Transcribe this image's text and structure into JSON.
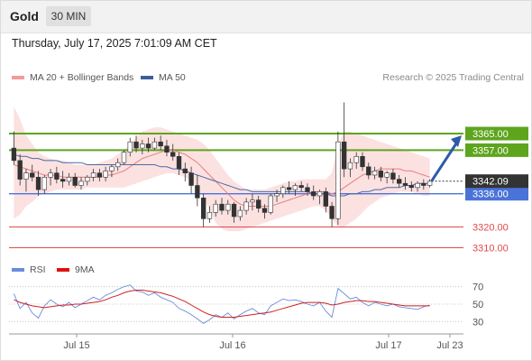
{
  "header": {
    "instrument": "Gold",
    "timeframe": "30 MIN"
  },
  "datetime": "Thursday, July 17, 2025 7:01:09 AM CET",
  "credit": "Research © 2025 Trading Central",
  "colors": {
    "up": "#5f9f3a",
    "down": "#e96a6a",
    "ma50": "#4a6aa8",
    "ma20": "#e88080",
    "band": "#fcdede",
    "resistance": "#5ea51e",
    "support_blue": "#4a73d8",
    "support_red": "#e24a4a",
    "rsi": "#6a8ddc",
    "rsi_ma": "#cc2222",
    "arrow": "#2e5ba8"
  },
  "legend": {
    "ma20": "MA 20 + Bollinger Bands",
    "ma50": "MA 50",
    "rsi": "RSI",
    "rsi_ma": "9MA"
  },
  "chart_data": [
    {
      "type": "line",
      "subtype": "candlestick",
      "x_ticks": [
        "Jul 15",
        "Jul 16",
        "Jul 17",
        "Jul 23"
      ],
      "y_range": [
        3305,
        3385
      ],
      "current_price": 3342.09,
      "levels": [
        {
          "value": 3365.0,
          "label": "3365.00",
          "kind": "resistance"
        },
        {
          "value": 3357.0,
          "label": "3357.00",
          "kind": "resistance"
        },
        {
          "value": 3336.0,
          "label": "3336.00",
          "kind": "support_blue"
        },
        {
          "value": 3320.0,
          "label": "3320.00",
          "kind": "support_red"
        },
        {
          "value": 3310.0,
          "label": "3310.00",
          "kind": "support_red"
        }
      ],
      "candles": [
        [
          3358,
          3366,
          3350,
          3352
        ],
        [
          3352,
          3355,
          3340,
          3343
        ],
        [
          3343,
          3348,
          3337,
          3346
        ],
        [
          3346,
          3350,
          3342,
          3344
        ],
        [
          3344,
          3347,
          3335,
          3338
        ],
        [
          3338,
          3345,
          3336,
          3344
        ],
        [
          3344,
          3348,
          3340,
          3346
        ],
        [
          3346,
          3349,
          3341,
          3343
        ],
        [
          3343,
          3347,
          3339,
          3342
        ],
        [
          3342,
          3346,
          3340,
          3344
        ],
        [
          3344,
          3346,
          3339,
          3340
        ],
        [
          3340,
          3344,
          3338,
          3342
        ],
        [
          3342,
          3345,
          3340,
          3344
        ],
        [
          3344,
          3348,
          3342,
          3346
        ],
        [
          3346,
          3348,
          3342,
          3344
        ],
        [
          3344,
          3349,
          3342,
          3347
        ],
        [
          3347,
          3350,
          3344,
          3349
        ],
        [
          3349,
          3353,
          3347,
          3351
        ],
        [
          3351,
          3357,
          3350,
          3356
        ],
        [
          3356,
          3363,
          3354,
          3361
        ],
        [
          3361,
          3364,
          3356,
          3358
        ],
        [
          3358,
          3362,
          3355,
          3360
        ],
        [
          3360,
          3363,
          3356,
          3358
        ],
        [
          3358,
          3363,
          3357,
          3361
        ],
        [
          3361,
          3364,
          3357,
          3359
        ],
        [
          3359,
          3362,
          3354,
          3356
        ],
        [
          3356,
          3360,
          3352,
          3354
        ],
        [
          3354,
          3356,
          3345,
          3348
        ],
        [
          3348,
          3351,
          3342,
          3346
        ],
        [
          3346,
          3349,
          3336,
          3340
        ],
        [
          3340,
          3345,
          3330,
          3334
        ],
        [
          3334,
          3336,
          3320,
          3324
        ],
        [
          3324,
          3330,
          3322,
          3327
        ],
        [
          3327,
          3333,
          3325,
          3331
        ],
        [
          3331,
          3334,
          3326,
          3328
        ],
        [
          3328,
          3333,
          3326,
          3331
        ],
        [
          3331,
          3332,
          3322,
          3325
        ],
        [
          3325,
          3330,
          3323,
          3328
        ],
        [
          3328,
          3334,
          3326,
          3332
        ],
        [
          3332,
          3336,
          3328,
          3333
        ],
        [
          3333,
          3335,
          3327,
          3329
        ],
        [
          3329,
          3331,
          3324,
          3327
        ],
        [
          3327,
          3336,
          3326,
          3335
        ],
        [
          3335,
          3338,
          3332,
          3336
        ],
        [
          3336,
          3340,
          3334,
          3339
        ],
        [
          3339,
          3342,
          3336,
          3338
        ],
        [
          3338,
          3341,
          3335,
          3340
        ],
        [
          3340,
          3342,
          3337,
          3339
        ],
        [
          3339,
          3341,
          3335,
          3337
        ],
        [
          3337,
          3340,
          3333,
          3335
        ],
        [
          3335,
          3338,
          3331,
          3337
        ],
        [
          3337,
          3339,
          3327,
          3330
        ],
        [
          3330,
          3332,
          3320,
          3324
        ],
        [
          3324,
          3366,
          3321,
          3361
        ],
        [
          3361,
          3380,
          3344,
          3348
        ],
        [
          3348,
          3353,
          3344,
          3351
        ],
        [
          3351,
          3356,
          3348,
          3354
        ],
        [
          3354,
          3356,
          3347,
          3349
        ],
        [
          3349,
          3351,
          3343,
          3345
        ],
        [
          3345,
          3349,
          3343,
          3347
        ],
        [
          3347,
          3349,
          3342,
          3344
        ],
        [
          3344,
          3347,
          3341,
          3346
        ],
        [
          3346,
          3348,
          3341,
          3343
        ],
        [
          3343,
          3345,
          3339,
          3341
        ],
        [
          3341,
          3344,
          3338,
          3340
        ],
        [
          3340,
          3342,
          3337,
          3339
        ],
        [
          3339,
          3342,
          3337,
          3341
        ],
        [
          3341,
          3343,
          3338,
          3340
        ],
        [
          3340,
          3343,
          3339,
          3342
        ]
      ],
      "ma20": [
        3350,
        3349,
        3348,
        3347,
        3346,
        3345,
        3345,
        3345,
        3344,
        3344,
        3344,
        3344,
        3344,
        3344,
        3344,
        3345,
        3345,
        3346,
        3347,
        3349,
        3351,
        3353,
        3354,
        3355,
        3356,
        3357,
        3357,
        3356,
        3355,
        3353,
        3351,
        3348,
        3345,
        3342,
        3339,
        3336,
        3333,
        3331,
        3330,
        3330,
        3330,
        3330,
        3330,
        3331,
        3332,
        3333,
        3334,
        3335,
        3336,
        3337,
        3337,
        3337,
        3336,
        3337,
        3339,
        3341,
        3343,
        3345,
        3346,
        3347,
        3348,
        3348,
        3348,
        3348,
        3347,
        3347,
        3346,
        3345,
        3344
      ],
      "bb_upper": [
        3378,
        3372,
        3364,
        3360,
        3356,
        3354,
        3353,
        3352,
        3352,
        3351,
        3350,
        3350,
        3350,
        3350,
        3351,
        3352,
        3353,
        3355,
        3357,
        3360,
        3363,
        3366,
        3367,
        3368,
        3368,
        3367,
        3366,
        3365,
        3364,
        3363,
        3362,
        3360,
        3357,
        3353,
        3349,
        3345,
        3342,
        3340,
        3338,
        3338,
        3338,
        3338,
        3339,
        3340,
        3341,
        3342,
        3342,
        3343,
        3343,
        3343,
        3343,
        3343,
        3346,
        3360,
        3366,
        3366,
        3365,
        3364,
        3363,
        3362,
        3361,
        3360,
        3359,
        3358,
        3357,
        3356,
        3355,
        3354,
        3353
      ],
      "bb_lower": [
        3324,
        3326,
        3330,
        3332,
        3335,
        3336,
        3337,
        3338,
        3338,
        3338,
        3338,
        3338,
        3339,
        3339,
        3339,
        3339,
        3339,
        3339,
        3339,
        3340,
        3341,
        3342,
        3343,
        3344,
        3345,
        3346,
        3346,
        3345,
        3344,
        3342,
        3339,
        3334,
        3328,
        3322,
        3319,
        3318,
        3318,
        3318,
        3319,
        3320,
        3321,
        3322,
        3323,
        3324,
        3325,
        3326,
        3327,
        3328,
        3329,
        3330,
        3330,
        3328,
        3324,
        3320,
        3320,
        3322,
        3324,
        3327,
        3330,
        3332,
        3334,
        3335,
        3336,
        3337,
        3337,
        3337,
        3336,
        3335,
        3335
      ],
      "ma50": [
        3355,
        3354,
        3354,
        3353,
        3353,
        3352,
        3352,
        3352,
        3351,
        3351,
        3351,
        3351,
        3350,
        3350,
        3350,
        3350,
        3350,
        3350,
        3350,
        3350,
        3350,
        3350,
        3350,
        3350,
        3349,
        3349,
        3348,
        3348,
        3347,
        3346,
        3345,
        3344,
        3343,
        3342,
        3341,
        3340,
        3339,
        3338,
        3338,
        3337,
        3337,
        3337,
        3337,
        3337,
        3337,
        3337,
        3337,
        3337,
        3337,
        3336,
        3336,
        3336,
        3335,
        3335,
        3335,
        3336,
        3336,
        3337,
        3337,
        3338,
        3338,
        3339,
        3339,
        3339,
        3340,
        3340,
        3341,
        3341,
        3341
      ]
    },
    {
      "type": "line",
      "title": "RSI",
      "y_ticks": [
        70,
        50,
        30
      ],
      "y_range": [
        20,
        80
      ],
      "x_ticks": [
        "Jul 15",
        "Jul 16",
        "Jul 17",
        "Jul 23"
      ],
      "series": [
        {
          "name": "RSI",
          "values": [
            62,
            45,
            52,
            40,
            34,
            48,
            55,
            50,
            47,
            52,
            46,
            50,
            54,
            58,
            55,
            60,
            63,
            67,
            70,
            72,
            65,
            64,
            60,
            63,
            58,
            55,
            52,
            45,
            42,
            38,
            33,
            28,
            32,
            38,
            35,
            40,
            33,
            38,
            42,
            45,
            40,
            38,
            48,
            52,
            56,
            54,
            55,
            53,
            50,
            48,
            52,
            42,
            35,
            68,
            62,
            56,
            58,
            52,
            48,
            52,
            50,
            48,
            50,
            47,
            46,
            45,
            44,
            47,
            49
          ]
        },
        {
          "name": "9MA",
          "values": [
            55,
            52,
            50,
            48,
            47,
            46,
            47,
            48,
            49,
            49,
            50,
            50,
            51,
            52,
            53,
            55,
            58,
            60,
            63,
            65,
            66,
            66,
            65,
            64,
            63,
            61,
            59,
            56,
            53,
            49,
            45,
            41,
            38,
            36,
            35,
            35,
            35,
            36,
            37,
            38,
            39,
            40,
            41,
            43,
            45,
            47,
            49,
            51,
            52,
            52,
            52,
            51,
            49,
            50,
            52,
            53,
            54,
            54,
            53,
            53,
            52,
            51,
            50,
            49,
            48,
            48,
            48,
            48,
            48
          ]
        }
      ]
    }
  ]
}
